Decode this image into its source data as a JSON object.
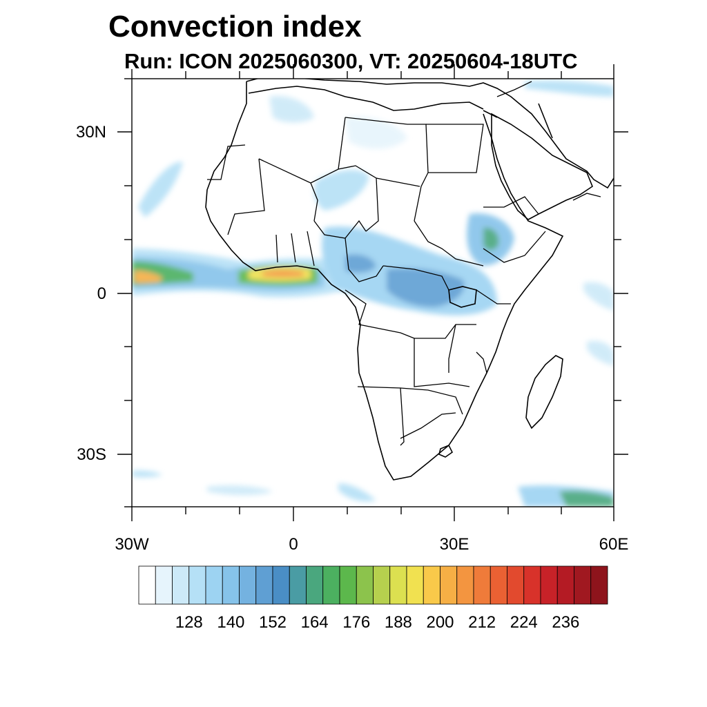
{
  "header": {
    "title": "Convection index",
    "subtitle": "Run: ICON 2025060300,  VT: 20250604-18UTC"
  },
  "axes": {
    "lat_labels": [
      "30N",
      "0",
      "30S"
    ],
    "lon_labels": [
      "30W",
      "0",
      "30E",
      "60E"
    ],
    "lat_range": [
      -40,
      40
    ],
    "lon_range": [
      -30,
      60
    ]
  },
  "colorbar": {
    "labels": [
      "128",
      "140",
      "152",
      "164",
      "176",
      "188",
      "200",
      "212",
      "224",
      "236"
    ],
    "colors": [
      "#ffffff",
      "#e6f4fc",
      "#cce9f8",
      "#b5e0f6",
      "#9dd3f2",
      "#86c3ea",
      "#74b2e0",
      "#5f9fd3",
      "#4a8ec5",
      "#4a9ca4",
      "#4aa77e",
      "#4cb060",
      "#5cb84c",
      "#8cc34c",
      "#b6d04e",
      "#dce050",
      "#f1e150",
      "#f9c94a",
      "#f6af45",
      "#f39540",
      "#ef7b3a",
      "#ea6133",
      "#e24a2e",
      "#d8322a",
      "#c72228",
      "#b41b24",
      "#a01820",
      "#8e141c"
    ]
  },
  "map_layers": {
    "coastlines": "coastlines",
    "borders": "country-borders"
  }
}
